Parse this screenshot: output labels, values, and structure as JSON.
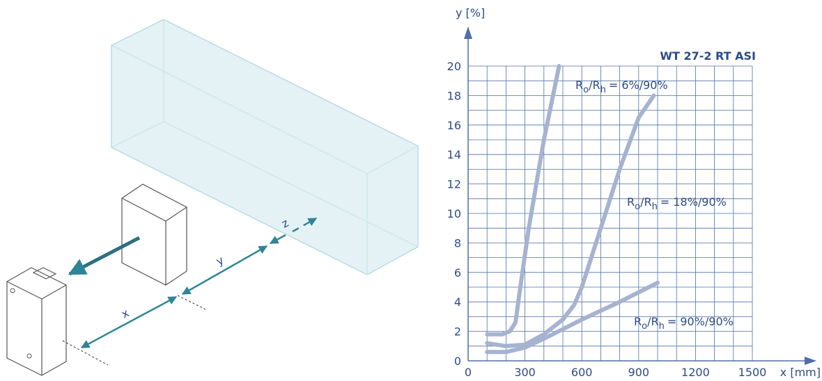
{
  "diagram": {
    "labels": [
      "x",
      "y",
      "z"
    ]
  },
  "chart_data": {
    "type": "line",
    "title": "WT 27-2 RT ASI",
    "x_label": "x [mm]",
    "y_label": "y [%]",
    "xlim": [
      0,
      1500
    ],
    "ylim": [
      0,
      20
    ],
    "xticks": [
      0,
      300,
      600,
      900,
      1200,
      1500
    ],
    "yticks": [
      0,
      2,
      4,
      6,
      8,
      10,
      12,
      14,
      16,
      18,
      20
    ],
    "grid": true,
    "series": [
      {
        "color": "#a6b3d0",
        "x": [
          100,
          180,
          220,
          250,
          270,
          320,
          400,
          480
        ],
        "values": [
          1.8,
          1.8,
          2.0,
          2.6,
          4.5,
          9,
          15,
          20
        ]
      },
      {
        "color": "#a6b3d0",
        "x": [
          100,
          200,
          300,
          400,
          500,
          560,
          600,
          700,
          800,
          900,
          980
        ],
        "values": [
          1.2,
          1.0,
          1.1,
          1.8,
          2.8,
          3.8,
          5,
          9,
          13,
          16.5,
          18
        ]
      },
      {
        "color": "#a6b3d0",
        "x": [
          100,
          200,
          300,
          400,
          600,
          800,
          1000
        ],
        "values": [
          0.6,
          0.6,
          0.9,
          1.5,
          2.8,
          4,
          5.3
        ]
      }
    ],
    "annotations": [
      {
        "text": [
          "R",
          "o",
          "/R",
          "h",
          "= 6%/90%"
        ]
      },
      {
        "text": [
          "R",
          "o",
          "/R",
          "h",
          "= 18%/90%"
        ]
      },
      {
        "text": [
          "R",
          "o",
          "/R",
          "h",
          "= 90%/90%"
        ]
      }
    ]
  }
}
